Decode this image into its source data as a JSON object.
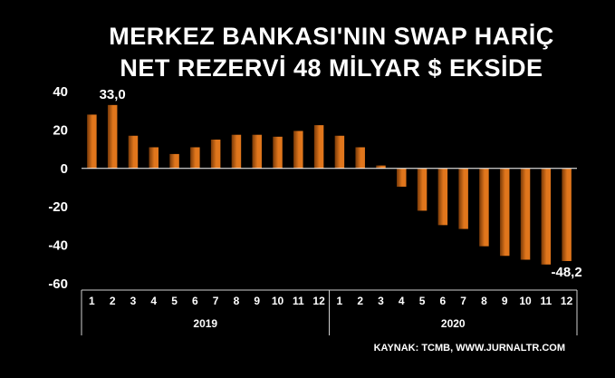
{
  "chart_data": {
    "type": "bar",
    "title_lines": [
      "MERKEZ BANKASI'NIN SWAP HARİÇ",
      "NET REZERVİ 48 MİLYAR $ EKSİDE"
    ],
    "source": "KAYNAK: TCMB, WWW.JURNALTR.COM",
    "ylim": [
      -60,
      40
    ],
    "yticks": [
      40,
      20,
      0,
      -20,
      -40,
      -60
    ],
    "grid": false,
    "legend": "none",
    "groups": [
      {
        "label": "2019",
        "months": [
          "1",
          "2",
          "3",
          "4",
          "5",
          "6",
          "7",
          "8",
          "9",
          "10",
          "11",
          "12"
        ]
      },
      {
        "label": "2020",
        "months": [
          "1",
          "2",
          "3",
          "4",
          "5",
          "6",
          "7",
          "8",
          "9",
          "10",
          "11",
          "12"
        ]
      }
    ],
    "values": [
      28,
      33.0,
      17,
      11,
      7.5,
      11,
      15,
      17.5,
      17.5,
      16.5,
      19.5,
      22.5,
      17,
      11,
      1.5,
      -9.5,
      -22,
      -29.5,
      -31.5,
      -40.5,
      -45.5,
      -47.5,
      -50,
      -48.2
    ],
    "data_labels": [
      {
        "index": 1,
        "text": "33,0"
      },
      {
        "index": 23,
        "text": "-48,2"
      }
    ],
    "colors": {
      "bar": "#e0761c",
      "bar_dark": "#7a3a08",
      "axis": "#ffffff",
      "background": "#000000",
      "text": "#ffffff"
    }
  }
}
